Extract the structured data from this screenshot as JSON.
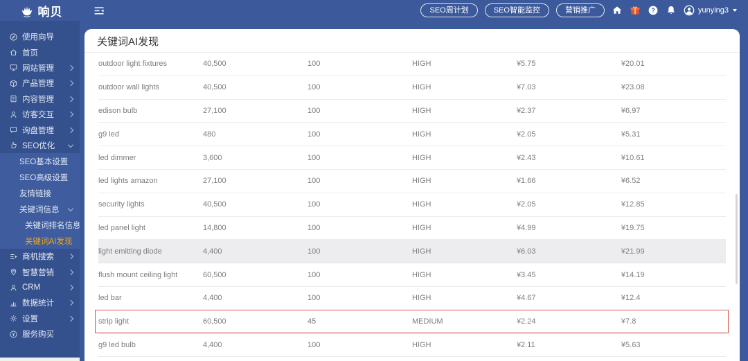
{
  "header": {
    "logo_text": "响贝",
    "pills": [
      {
        "id": "seo-weekly-plan",
        "label": "SEO周计划"
      },
      {
        "id": "seo-smart-monitor",
        "label": "SEO智能监控"
      },
      {
        "id": "marketing-promotion",
        "label": "营销推广"
      }
    ],
    "username": "yunying3"
  },
  "sidebar": {
    "items": [
      {
        "id": "guide",
        "type": "item",
        "icon": "guide",
        "label": "使用向导"
      },
      {
        "id": "home",
        "type": "item",
        "icon": "home",
        "label": "首页"
      },
      {
        "id": "site-manage",
        "type": "item",
        "icon": "site",
        "label": "网站管理",
        "chevron": "right"
      },
      {
        "id": "product-manage",
        "type": "item",
        "icon": "product",
        "label": "产品管理",
        "chevron": "right"
      },
      {
        "id": "content-manage",
        "type": "item",
        "icon": "content",
        "label": "内容管理",
        "chevron": "right"
      },
      {
        "id": "visitor",
        "type": "item",
        "icon": "visitor",
        "label": "访客交互",
        "chevron": "right"
      },
      {
        "id": "inquiry",
        "type": "item",
        "icon": "inquiry",
        "label": "询盘管理",
        "chevron": "right"
      },
      {
        "id": "seo-optimize",
        "type": "item",
        "icon": "seo",
        "label": "SEO优化",
        "chevron": "down"
      },
      {
        "id": "seo-basic",
        "type": "sub1",
        "label": "SEO基本设置",
        "panel": true
      },
      {
        "id": "seo-advanced",
        "type": "sub1",
        "label": "SEO高级设置",
        "panel": true
      },
      {
        "id": "friend-links",
        "type": "sub1",
        "label": "友情链接",
        "panel": true
      },
      {
        "id": "keyword-info",
        "type": "sub1",
        "label": "关键词信息",
        "panel": true,
        "chevron": "down"
      },
      {
        "id": "keyword-rank",
        "type": "sub2",
        "label": "关键词排名信息",
        "panel": true
      },
      {
        "id": "keyword-ai",
        "type": "sub2",
        "label": "关键词AI发现",
        "panel": true,
        "active": true
      },
      {
        "id": "biz-search",
        "type": "item",
        "icon": "biz",
        "label": "商机搜索",
        "chevron": "right"
      },
      {
        "id": "smart-marketing",
        "type": "item",
        "icon": "marketing",
        "label": "智慧营销",
        "chevron": "right"
      },
      {
        "id": "crm",
        "type": "item",
        "icon": "crm",
        "label": "CRM",
        "chevron": "right"
      },
      {
        "id": "data-stats",
        "type": "item",
        "icon": "stats",
        "label": "数据统计",
        "chevron": "right"
      },
      {
        "id": "settings",
        "type": "item",
        "icon": "settings",
        "label": "设置",
        "chevron": "right"
      },
      {
        "id": "purchase",
        "type": "item",
        "icon": "purchase",
        "label": "服务购买"
      }
    ]
  },
  "main": {
    "title": "关键词AI发现",
    "table": {
      "rows": [
        {
          "keyword": "outdoor light fixtures",
          "search_volume": "40,500",
          "score": "100",
          "competition": "HIGH",
          "price_low": "¥5.75",
          "price_high": "¥20.01"
        },
        {
          "keyword": "outdoor wall lights",
          "search_volume": "40,500",
          "score": "100",
          "competition": "HIGH",
          "price_low": "¥7.03",
          "price_high": "¥23.08"
        },
        {
          "keyword": "edison bulb",
          "search_volume": "27,100",
          "score": "100",
          "competition": "HIGH",
          "price_low": "¥2.37",
          "price_high": "¥6.97"
        },
        {
          "keyword": "g9 led",
          "search_volume": "480",
          "score": "100",
          "competition": "HIGH",
          "price_low": "¥2.05",
          "price_high": "¥5.31"
        },
        {
          "keyword": "led dimmer",
          "search_volume": "3,600",
          "score": "100",
          "competition": "HIGH",
          "price_low": "¥2.43",
          "price_high": "¥10.61"
        },
        {
          "keyword": "led lights amazon",
          "search_volume": "27,100",
          "score": "100",
          "competition": "HIGH",
          "price_low": "¥1.66",
          "price_high": "¥6.52"
        },
        {
          "keyword": "security lights",
          "search_volume": "40,500",
          "score": "100",
          "competition": "HIGH",
          "price_low": "¥2.05",
          "price_high": "¥12.85"
        },
        {
          "keyword": "led panel light",
          "search_volume": "14,800",
          "score": "100",
          "competition": "HIGH",
          "price_low": "¥4.99",
          "price_high": "¥19.75"
        },
        {
          "keyword": "light emitting diode",
          "search_volume": "4,400",
          "score": "100",
          "competition": "HIGH",
          "price_low": "¥6.03",
          "price_high": "¥21.99",
          "highlight": "gray"
        },
        {
          "keyword": "flush mount ceiling light",
          "search_volume": "60,500",
          "score": "100",
          "competition": "HIGH",
          "price_low": "¥3.45",
          "price_high": "¥14.19"
        },
        {
          "keyword": "led bar",
          "search_volume": "4,400",
          "score": "100",
          "competition": "HIGH",
          "price_low": "¥4.67",
          "price_high": "¥12.4"
        },
        {
          "keyword": "strip light",
          "search_volume": "60,500",
          "score": "45",
          "competition": "MEDIUM",
          "price_low": "¥2.24",
          "price_high": "¥7.8",
          "highlight": "red-border"
        },
        {
          "keyword": "g9 led bulb",
          "search_volume": "4,400",
          "score": "100",
          "competition": "HIGH",
          "price_low": "¥2.11",
          "price_high": "¥5.63"
        }
      ]
    }
  },
  "colors": {
    "header_bg": "#3c5a9b",
    "sidebar_bg": "#35518d",
    "submenu_bg": "#3e5c9e",
    "active_item_text": "#f2a819",
    "highlight_row_bg": "#ededef",
    "red_highlight_border": "#d9534a",
    "gift_icon_red": "#e8503a",
    "gift_icon_ribbon": "#f6c04d"
  }
}
